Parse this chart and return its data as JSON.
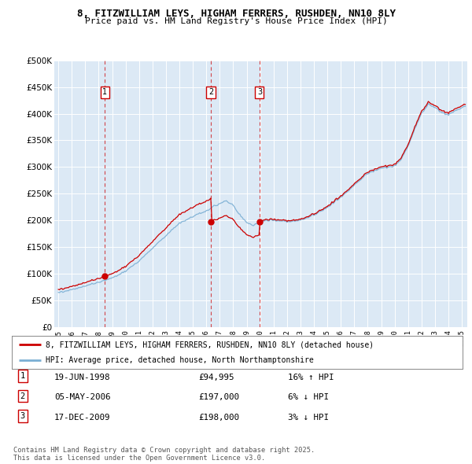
{
  "title": "8, FITZWILLIAM LEYS, HIGHAM FERRERS, RUSHDEN, NN10 8LY",
  "subtitle": "Price paid vs. HM Land Registry's House Price Index (HPI)",
  "legend_line1": "8, FITZWILLIAM LEYS, HIGHAM FERRERS, RUSHDEN, NN10 8LY (detached house)",
  "legend_line2": "HPI: Average price, detached house, North Northamptonshire",
  "footnote": "Contains HM Land Registry data © Crown copyright and database right 2025.\nThis data is licensed under the Open Government Licence v3.0.",
  "transactions": [
    {
      "num": 1,
      "date": "19-JUN-1998",
      "price": "£94,995",
      "hpi_rel": "16% ↑ HPI",
      "x_year": 1998.46,
      "y_val": 94995
    },
    {
      "num": 2,
      "date": "05-MAY-2006",
      "price": "£197,000",
      "hpi_rel": "6% ↓ HPI",
      "x_year": 2006.34,
      "y_val": 197000
    },
    {
      "num": 3,
      "date": "17-DEC-2009",
      "price": "£198,000",
      "hpi_rel": "3% ↓ HPI",
      "x_year": 2009.96,
      "y_val": 198000
    }
  ],
  "hpi_color": "#7bafd4",
  "price_color": "#cc0000",
  "bg_color": "#dce9f5",
  "ylim": [
    0,
    500000
  ],
  "xlim_start": 1994.7,
  "xlim_end": 2025.4,
  "ytick_step": 50000
}
